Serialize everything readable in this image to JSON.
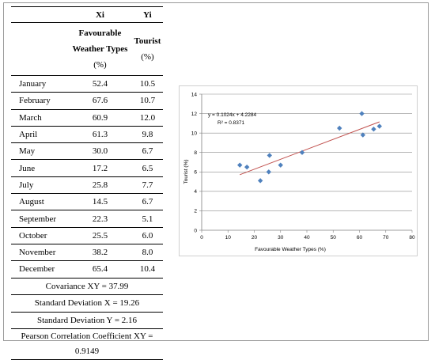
{
  "table": {
    "headers": {
      "col2_var": "Xi",
      "col3_var": "Yi",
      "col2_desc": [
        "Favourable",
        "Weather Types",
        "(%)"
      ],
      "col3_desc": [
        "Tourist",
        "(%)"
      ]
    },
    "rows": [
      {
        "month": "January",
        "x": "52.4",
        "y": "10.5"
      },
      {
        "month": "February",
        "x": "67.6",
        "y": "10.7"
      },
      {
        "month": "March",
        "x": "60.9",
        "y": "12.0"
      },
      {
        "month": "April",
        "x": "61.3",
        "y": "9.8"
      },
      {
        "month": "May",
        "x": "30.0",
        "y": "6.7"
      },
      {
        "month": "June",
        "x": "17.2",
        "y": "6.5"
      },
      {
        "month": "July",
        "x": "25.8",
        "y": "7.7"
      },
      {
        "month": "August",
        "x": "14.5",
        "y": "6.7"
      },
      {
        "month": "September",
        "x": "22.3",
        "y": "5.1"
      },
      {
        "month": "October",
        "x": "25.5",
        "y": "6.0"
      },
      {
        "month": "November",
        "x": "38.2",
        "y": "8.0"
      },
      {
        "month": "December",
        "x": "65.4",
        "y": "10.4"
      }
    ],
    "footer": {
      "covariance": "Covariance XY = 37.99",
      "sd_x": "Standard Deviation X = 19.26",
      "sd_y": "Standard Deviation Y = 2.16",
      "pearson_line1": "Pearson Correlation Coefficient XY =",
      "pearson_line2": "0.9149"
    }
  },
  "chart_data": {
    "type": "scatter",
    "xlabel": "Favourable Weather Types (%)",
    "ylabel": "Tourist  (%)",
    "xlim": [
      0,
      80
    ],
    "ylim": [
      0,
      14
    ],
    "xticks": [
      0,
      10,
      20,
      30,
      40,
      50,
      60,
      70,
      80
    ],
    "yticks": [
      0,
      2,
      4,
      6,
      8,
      10,
      12,
      14
    ],
    "grid": "horizontal",
    "series": [
      {
        "points": [
          {
            "x": 52.4,
            "y": 10.5
          },
          {
            "x": 67.6,
            "y": 10.7
          },
          {
            "x": 60.9,
            "y": 12.0
          },
          {
            "x": 61.3,
            "y": 9.8
          },
          {
            "x": 30.0,
            "y": 6.7
          },
          {
            "x": 17.2,
            "y": 6.5
          },
          {
            "x": 25.8,
            "y": 7.7
          },
          {
            "x": 14.5,
            "y": 6.7
          },
          {
            "x": 22.3,
            "y": 5.1
          },
          {
            "x": 25.5,
            "y": 6.0
          },
          {
            "x": 38.2,
            "y": 8.0
          },
          {
            "x": 65.4,
            "y": 10.4
          }
        ]
      }
    ],
    "trendline": {
      "slope": 0.1024,
      "intercept": 4.2284,
      "x_range": [
        14.5,
        67.6
      ]
    },
    "annotations": {
      "equation": "y = 0.1024x + 4.2284",
      "r_squared": "R² = 0.8371"
    },
    "colors": {
      "marker": "#4f81bd",
      "trendline": "#c0504d",
      "grid": "#8c8c8c"
    }
  }
}
